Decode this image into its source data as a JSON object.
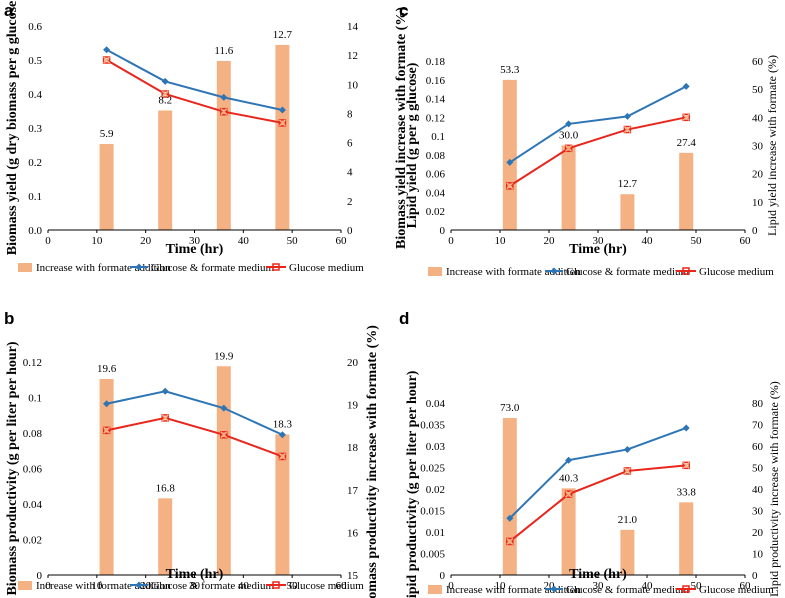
{
  "colors": {
    "bar": "#F4B183",
    "blue": "#2E75B6",
    "red": "#E8261C",
    "marker_x": "#F4B183",
    "axis": "#000000"
  },
  "legend": {
    "bar": "Increase with formate addition",
    "blue": "Glucose & formate medium",
    "red": "Glucose medium"
  },
  "chart_data": [
    {
      "panel": "a",
      "type": "bar+line",
      "xlabel": "Time (hr)",
      "ylabel": "Biomass yield (g dry biomass per g glucose",
      "y2label": "Biomass yield increase with formate (%)",
      "xlim": [
        0,
        60
      ],
      "xticks": [
        0,
        10,
        20,
        30,
        40,
        50,
        60
      ],
      "ylim": [
        0,
        0.6
      ],
      "yticks": [
        0,
        0.1,
        0.2,
        0.3,
        0.4,
        0.5,
        0.6
      ],
      "y2lim": [
        0,
        14
      ],
      "y2ticks": [
        0,
        2,
        4,
        6,
        8,
        10,
        12,
        14
      ],
      "x": [
        12,
        24,
        36,
        48
      ],
      "bars": [
        5.9,
        8.2,
        11.6,
        12.7
      ],
      "bar_labels": [
        "5.9",
        "8.2",
        "11.6",
        "12.7"
      ],
      "series": [
        {
          "name": "Glucose & formate medium",
          "values": [
            0.53,
            0.437,
            0.39,
            0.353
          ]
        },
        {
          "name": "Glucose medium",
          "values": [
            0.5,
            0.4,
            0.348,
            0.315
          ]
        }
      ]
    },
    {
      "panel": "c",
      "type": "bar+line",
      "xlabel": "Time (hr)",
      "ylabel": "Lipid yield (g per g glucose)",
      "y2label": "Lipid yield increase with formate (%)",
      "xlim": [
        0,
        60
      ],
      "xticks": [
        0,
        10,
        20,
        30,
        40,
        50,
        60
      ],
      "ylim": [
        0,
        0.18
      ],
      "yticks": [
        0,
        0.02,
        0.04,
        0.06,
        0.08,
        0.1,
        0.12,
        0.14,
        0.16,
        0.18
      ],
      "y2lim": [
        0,
        60
      ],
      "y2ticks": [
        0,
        10,
        20,
        30,
        40,
        50,
        60
      ],
      "x": [
        12,
        24,
        36,
        48
      ],
      "bars": [
        53.3,
        30.0,
        12.7,
        27.4
      ],
      "bar_labels": [
        "53.3",
        "30.0",
        "12.7",
        "27.4"
      ],
      "series": [
        {
          "name": "Glucose & formate medium",
          "values": [
            0.072,
            0.113,
            0.121,
            0.153
          ]
        },
        {
          "name": "Glucose medium",
          "values": [
            0.047,
            0.087,
            0.107,
            0.12
          ]
        }
      ]
    },
    {
      "panel": "b",
      "type": "bar+line",
      "xlabel": "Time (hr)",
      "ylabel": "Biomass productivity (g per liter per hour)",
      "y2label": "Biomass productivity increase with formate (%)",
      "xlim": [
        0,
        60
      ],
      "xticks": [
        0,
        10,
        20,
        30,
        40,
        50,
        60
      ],
      "ylim": [
        0,
        0.12
      ],
      "yticks": [
        0,
        0.02,
        0.04,
        0.06,
        0.08,
        0.1,
        0.12
      ],
      "y2lim": [
        15,
        20
      ],
      "y2ticks": [
        15,
        16,
        17,
        18,
        19,
        20
      ],
      "x": [
        12,
        24,
        36,
        48
      ],
      "bars": [
        19.6,
        16.8,
        19.9,
        18.3
      ],
      "bar_labels": [
        "19.6",
        "16.8",
        "19.9",
        "18.3"
      ],
      "series": [
        {
          "name": "Glucose & formate medium",
          "values": [
            0.0965,
            0.1035,
            0.094,
            0.079
          ]
        },
        {
          "name": "Glucose medium",
          "values": [
            0.0815,
            0.0885,
            0.079,
            0.0668
          ]
        }
      ]
    },
    {
      "panel": "d",
      "type": "bar+line",
      "xlabel": "Time (hr)",
      "ylabel": "Lipid productivity (g per liter per hour)",
      "y2label": "Lipid productivity increase with formate (%)",
      "xlim": [
        0,
        60
      ],
      "xticks": [
        0,
        10,
        20,
        30,
        40,
        50,
        60
      ],
      "ylim": [
        0,
        0.04
      ],
      "yticks": [
        0,
        0.005,
        0.01,
        0.015,
        0.02,
        0.025,
        0.03,
        0.035,
        0.04
      ],
      "y2lim": [
        0,
        80
      ],
      "y2ticks": [
        0,
        10,
        20,
        30,
        40,
        50,
        60,
        70,
        80
      ],
      "x": [
        12,
        24,
        36,
        48
      ],
      "bars": [
        73.0,
        40.3,
        21.0,
        33.8
      ],
      "bar_labels": [
        "73.0",
        "40.3",
        "21.0",
        "33.8"
      ],
      "series": [
        {
          "name": "Glucose & formate medium",
          "values": [
            0.0132,
            0.0267,
            0.0292,
            0.0342
          ]
        },
        {
          "name": "Glucose medium",
          "values": [
            0.0078,
            0.0188,
            0.0242,
            0.0255
          ]
        }
      ]
    }
  ]
}
